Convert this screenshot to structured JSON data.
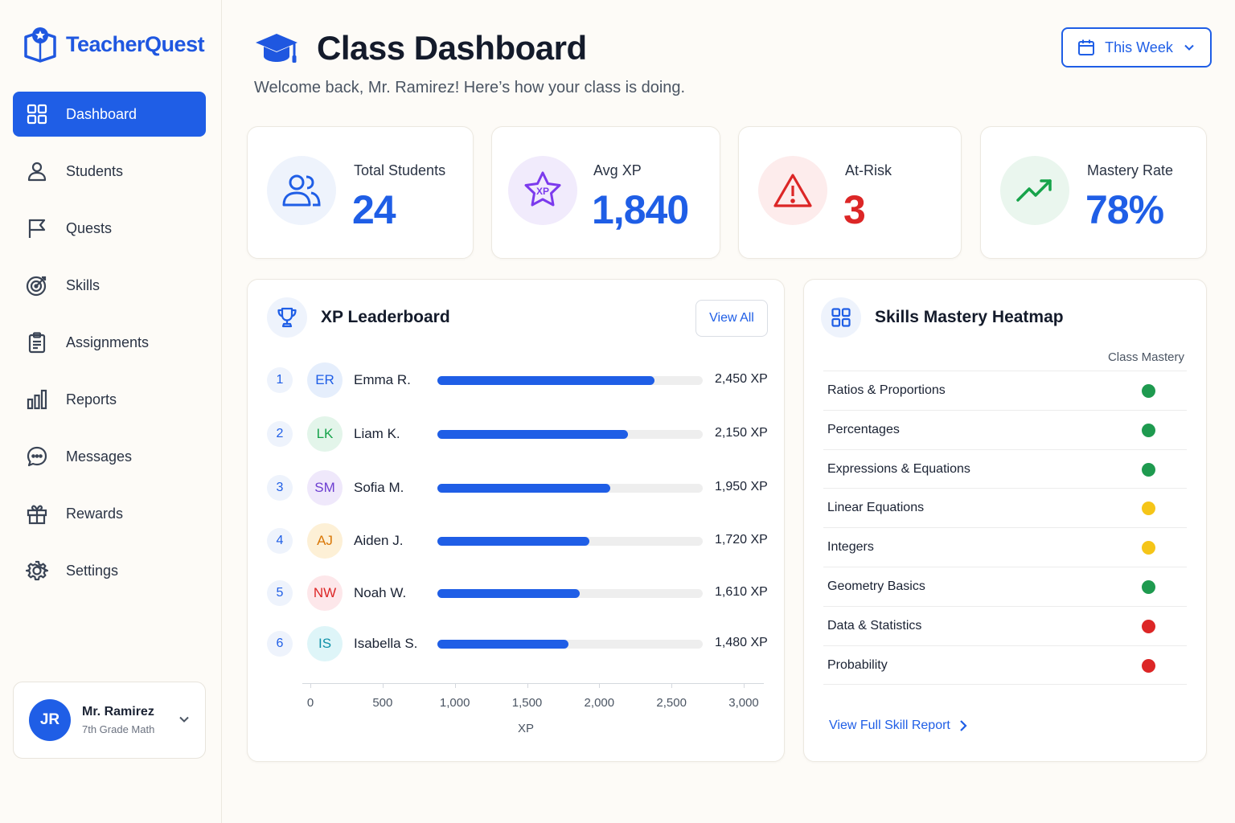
{
  "app": {
    "name": "TeacherQuest"
  },
  "sidebar": {
    "items": [
      {
        "label": "Dashboard",
        "icon": "grid-icon",
        "active": true
      },
      {
        "label": "Students",
        "icon": "user-icon"
      },
      {
        "label": "Quests",
        "icon": "flag-icon"
      },
      {
        "label": "Skills",
        "icon": "target-icon"
      },
      {
        "label": "Assignments",
        "icon": "clipboard-icon"
      },
      {
        "label": "Reports",
        "icon": "bar-chart-icon"
      },
      {
        "label": "Messages",
        "icon": "chat-icon"
      },
      {
        "label": "Rewards",
        "icon": "gift-icon"
      },
      {
        "label": "Settings",
        "icon": "gear-icon"
      }
    ],
    "user": {
      "initials": "JR",
      "name": "Mr. Ramirez",
      "role": "7th Grade Math"
    }
  },
  "header": {
    "title": "Class Dashboard",
    "subtitle": "Welcome back, Mr. Ramirez! Here’s how your class is doing.",
    "period": "This Week"
  },
  "stats": [
    {
      "label": "Total Students",
      "value": "24",
      "color": "#1f5ee6",
      "icon": "users-icon"
    },
    {
      "label": "Avg XP",
      "value": "1,840",
      "color": "#1f5ee6",
      "icon": "xp-star-icon"
    },
    {
      "label": "At-Risk",
      "value": "3",
      "color": "#dc2626",
      "icon": "warning-icon"
    },
    {
      "label": "Mastery Rate",
      "value": "78%",
      "color": "#1f5ee6",
      "icon": "trend-up-icon"
    }
  ],
  "leaderboard": {
    "title": "XP Leaderboard",
    "view_all": "View All",
    "axis_label": "XP",
    "rows": [
      {
        "rank": "1",
        "initials": "ER",
        "name": "Emma R.",
        "xp": 2450,
        "xp_label": "2,450 XP",
        "bg": "#e5eefc",
        "fg": "#1f5ee6"
      },
      {
        "rank": "2",
        "initials": "LK",
        "name": "Liam K.",
        "xp": 2150,
        "xp_label": "2,150 XP",
        "bg": "#e3f5ea",
        "fg": "#16a34a"
      },
      {
        "rank": "3",
        "initials": "SM",
        "name": "Sofia M.",
        "xp": 1950,
        "xp_label": "1,950 XP",
        "bg": "#efe8fb",
        "fg": "#6d3fd1"
      },
      {
        "rank": "4",
        "initials": "AJ",
        "name": "Aiden J.",
        "xp": 1720,
        "xp_label": "1,720 XP",
        "bg": "#fdf0d6",
        "fg": "#d97706"
      },
      {
        "rank": "5",
        "initials": "NW",
        "name": "Noah W.",
        "xp": 1610,
        "xp_label": "1,610 XP",
        "bg": "#fde7ea",
        "fg": "#dc2626"
      },
      {
        "rank": "6",
        "initials": "IS",
        "name": "Isabella S.",
        "xp": 1480,
        "xp_label": "1,480 XP",
        "bg": "#def5f8",
        "fg": "#0e91a8"
      }
    ]
  },
  "chart_data": {
    "type": "bar",
    "categories": [
      "Emma R.",
      "Liam K.",
      "Sofia M.",
      "Aiden J.",
      "Noah W.",
      "Isabella S."
    ],
    "values": [
      2450,
      2150,
      1950,
      1720,
      1610,
      1480
    ],
    "xlabel": "XP",
    "xlim": [
      0,
      3000
    ],
    "ticks": [
      "0",
      "500",
      "1,000",
      "1,500",
      "2,000",
      "2,500",
      "3,000"
    ]
  },
  "heatmap": {
    "title": "Skills Mastery Heatmap",
    "column": "Class Mastery",
    "link": "View Full Skill Report",
    "skills": [
      {
        "name": "Ratios & Proportions",
        "color": "#1e9a4f"
      },
      {
        "name": "Percentages",
        "color": "#1e9a4f"
      },
      {
        "name": "Expressions & Equations",
        "color": "#1e9a4f"
      },
      {
        "name": "Linear Equations",
        "color": "#f5c518"
      },
      {
        "name": "Integers",
        "color": "#f5c518"
      },
      {
        "name": "Geometry Basics",
        "color": "#1e9a4f"
      },
      {
        "name": "Data & Statistics",
        "color": "#dc2626"
      },
      {
        "name": "Probability",
        "color": "#dc2626"
      }
    ]
  }
}
